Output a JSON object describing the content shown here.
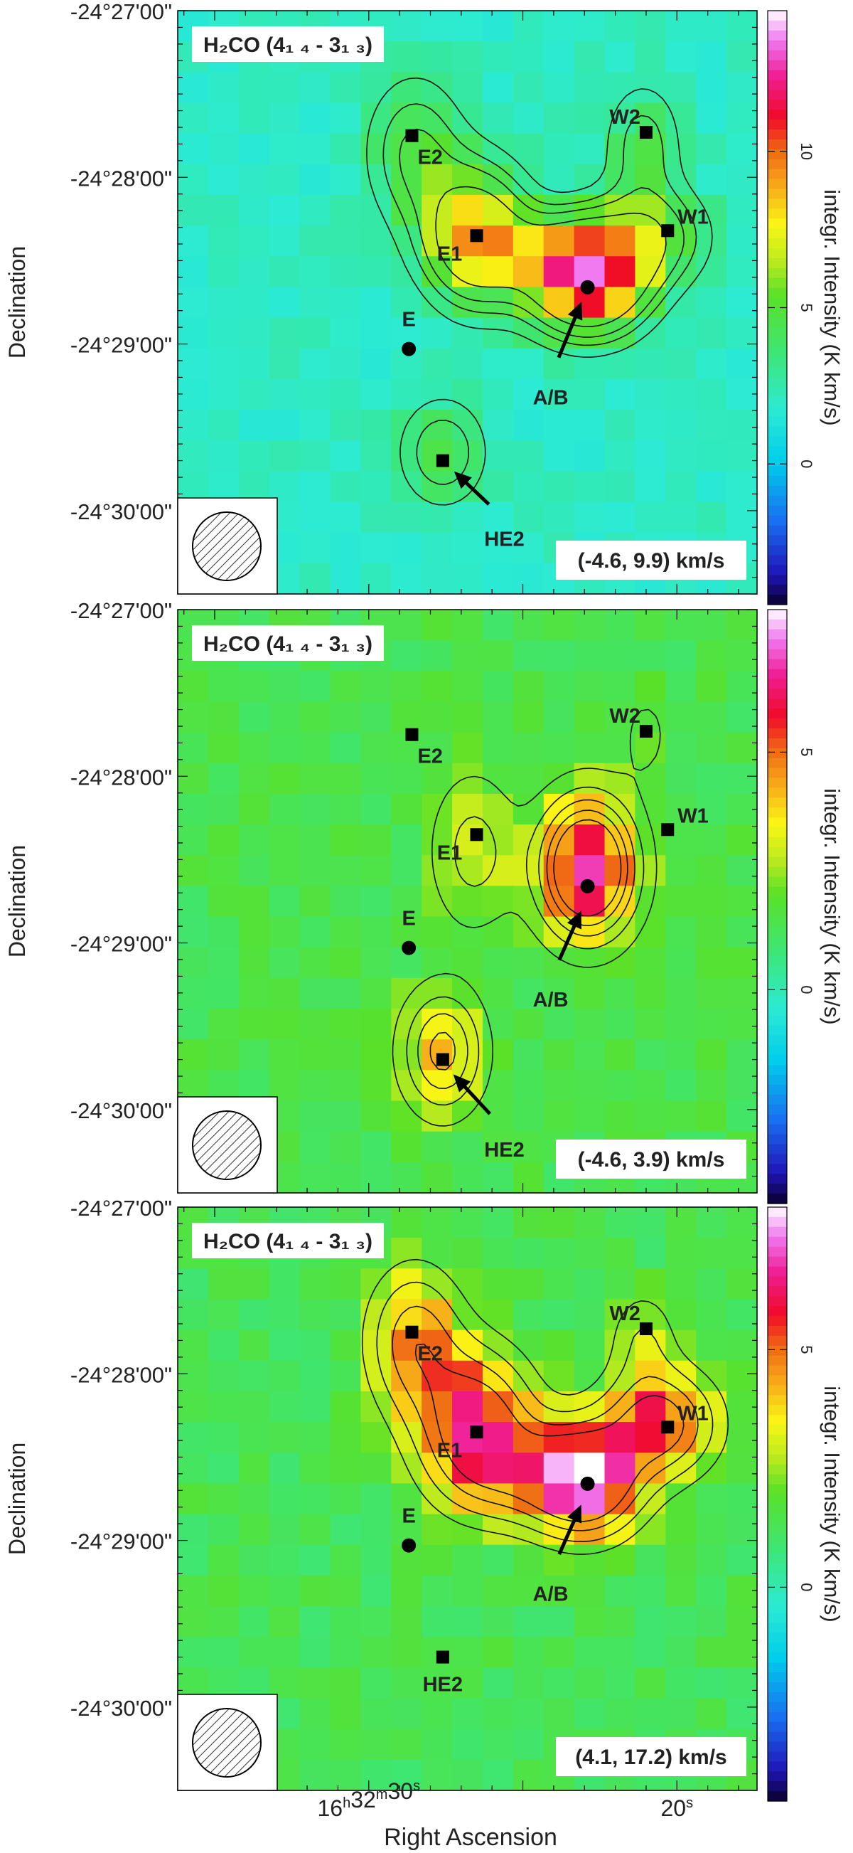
{
  "chart_data": {
    "type": "heatmap",
    "xlabel": "Right Ascension",
    "ylabel": "Declination",
    "cbar_label": "integr. Intensity (K km/s)",
    "x_ticks": [
      {
        "label": "16h32m30s",
        "ra_s": 30
      },
      {
        "label": "20s",
        "ra_s": 20
      }
    ],
    "y_ticks": [
      {
        "label": "-24°27'00\"",
        "dec_min": -27
      },
      {
        "label": "-24°28'00\"",
        "dec_min": -28
      },
      {
        "label": "-24°29'00\"",
        "dec_min": -29
      },
      {
        "label": "-24°30'00\"",
        "dec_min": -30
      }
    ],
    "ra_range_s": [
      36.2,
      17.4
    ],
    "dec_range_min": [
      -27.0,
      -30.5
    ],
    "sources": [
      {
        "name": "E2",
        "ra_s": 28.6,
        "dec_min": -27.75,
        "marker": "square"
      },
      {
        "name": "E1",
        "ra_s": 26.5,
        "dec_min": -28.35,
        "marker": "square"
      },
      {
        "name": "E",
        "ra_s": 28.7,
        "dec_min": -29.03,
        "marker": "circle"
      },
      {
        "name": "HE2",
        "ra_s": 27.6,
        "dec_min": -29.7,
        "marker": "square"
      },
      {
        "name": "A/B",
        "ra_s": 22.9,
        "dec_min": -28.66,
        "marker": "circle"
      },
      {
        "name": "W1",
        "ra_s": 20.3,
        "dec_min": -28.32,
        "marker": "square"
      },
      {
        "name": "W2",
        "ra_s": 21.0,
        "dec_min": -27.73,
        "marker": "square"
      }
    ],
    "panels": [
      {
        "molecule": "H₂CO (4₁ ₄ - 3₁ ₃)",
        "velocity_range": "(-4.6, 9.9) km/s",
        "cbar_range": [
          -4.5,
          14.5
        ],
        "cbar_ticks": [
          0,
          5,
          10
        ],
        "background": 2.0,
        "blobs": [
          {
            "ra_s": 26.5,
            "dec_min": -28.35,
            "peak": 6.5,
            "sigma": [
              0.38,
              0.28
            ]
          },
          {
            "ra_s": 28.5,
            "dec_min": -27.85,
            "peak": 3.0,
            "sigma": [
              0.35,
              0.3
            ]
          },
          {
            "ra_s": 22.9,
            "dec_min": -28.6,
            "peak": 10.5,
            "sigma": [
              0.42,
              0.22
            ]
          },
          {
            "ra_s": 20.8,
            "dec_min": -28.35,
            "peak": 3.5,
            "sigma": [
              0.4,
              0.2
            ]
          },
          {
            "ra_s": 21.1,
            "dec_min": -27.8,
            "peak": 2.4,
            "sigma": [
              0.28,
              0.25
            ]
          },
          {
            "ra_s": 27.6,
            "dec_min": -29.65,
            "peak": 2.8,
            "sigma": [
              0.32,
              0.22
            ]
          },
          {
            "ra_s": 24.5,
            "dec_min": -28.45,
            "peak": 2.2,
            "sigma": [
              0.6,
              0.15
            ]
          }
        ],
        "contour_levels": [
          3.0,
          3.9,
          4.8,
          6.3
        ],
        "arrows": [
          {
            "label": "A/B",
            "label_ra_s": 24.1,
            "label_dec_min": -29.2,
            "tip_ra_s": 22.9,
            "tip_dec_min": -28.66
          },
          {
            "label": "HE2",
            "label_ra_s": 25.6,
            "label_dec_min": -30.05,
            "tip_ra_s": 27.6,
            "tip_dec_min": -29.7
          }
        ]
      },
      {
        "molecule": "H₂CO (4₁ ₄ - 3₁ ₃)",
        "velocity_range": "(-4.6, 3.9) km/s",
        "cbar_range": [
          -4.5,
          8.0
        ],
        "cbar_ticks": [
          0,
          5
        ],
        "background": 1.4,
        "blobs": [
          {
            "ra_s": 26.6,
            "dec_min": -28.45,
            "peak": 1.6,
            "sigma": [
              0.32,
              0.32
            ]
          },
          {
            "ra_s": 22.9,
            "dec_min": -28.55,
            "peak": 5.8,
            "sigma": [
              0.35,
              0.28
            ]
          },
          {
            "ra_s": 27.6,
            "dec_min": -29.65,
            "peak": 3.0,
            "sigma": [
              0.3,
              0.25
            ]
          },
          {
            "ra_s": 21.0,
            "dec_min": -27.75,
            "peak": 0.8,
            "sigma": [
              0.2,
              0.2
            ]
          }
        ],
        "contour_levels": [
          2.0,
          2.7,
          3.4,
          4.1,
          4.8
        ],
        "arrows": [
          {
            "label": "A/B",
            "label_ra_s": 24.1,
            "label_dec_min": -29.22,
            "tip_ra_s": 22.9,
            "tip_dec_min": -28.72
          },
          {
            "label": "HE2",
            "label_ra_s": 25.6,
            "label_dec_min": -30.12,
            "tip_ra_s": 27.6,
            "tip_dec_min": -29.72
          }
        ]
      },
      {
        "molecule": "H₂CO (4₁ ₄ - 3₁ ₃)",
        "velocity_range": "(4.1, 17.2) km/s",
        "cbar_range": [
          -4.5,
          8.0
        ],
        "cbar_ticks": [
          0,
          5
        ],
        "background": 1.3,
        "blobs": [
          {
            "ra_s": 26.5,
            "dec_min": -28.3,
            "peak": 4.8,
            "sigma": [
              0.42,
              0.3
            ]
          },
          {
            "ra_s": 28.5,
            "dec_min": -27.8,
            "peak": 3.3,
            "sigma": [
              0.35,
              0.3
            ]
          },
          {
            "ra_s": 23.0,
            "dec_min": -28.65,
            "peak": 5.6,
            "sigma": [
              0.4,
              0.22
            ]
          },
          {
            "ra_s": 20.6,
            "dec_min": -28.3,
            "peak": 4.5,
            "sigma": [
              0.42,
              0.22
            ]
          },
          {
            "ra_s": 21.1,
            "dec_min": -27.78,
            "peak": 1.6,
            "sigma": [
              0.25,
              0.2
            ]
          },
          {
            "ra_s": 24.7,
            "dec_min": -28.6,
            "peak": 2.4,
            "sigma": [
              0.55,
              0.2
            ]
          }
        ],
        "contour_levels": [
          2.2,
          3.0,
          4.0,
          5.0
        ],
        "arrows": [
          {
            "label": "A/B",
            "label_ra_s": 24.1,
            "label_dec_min": -29.2,
            "tip_ra_s": 22.9,
            "tip_dec_min": -28.7
          }
        ]
      }
    ]
  },
  "colors": {
    "molecule_label": "#e8391b",
    "frame": "#000000",
    "contour": "#111111",
    "background": "#ffffff"
  },
  "icons": {
    "beam": "hatched-circle-icon",
    "square_source": "square-marker-icon",
    "circle_source": "circle-marker-icon"
  }
}
